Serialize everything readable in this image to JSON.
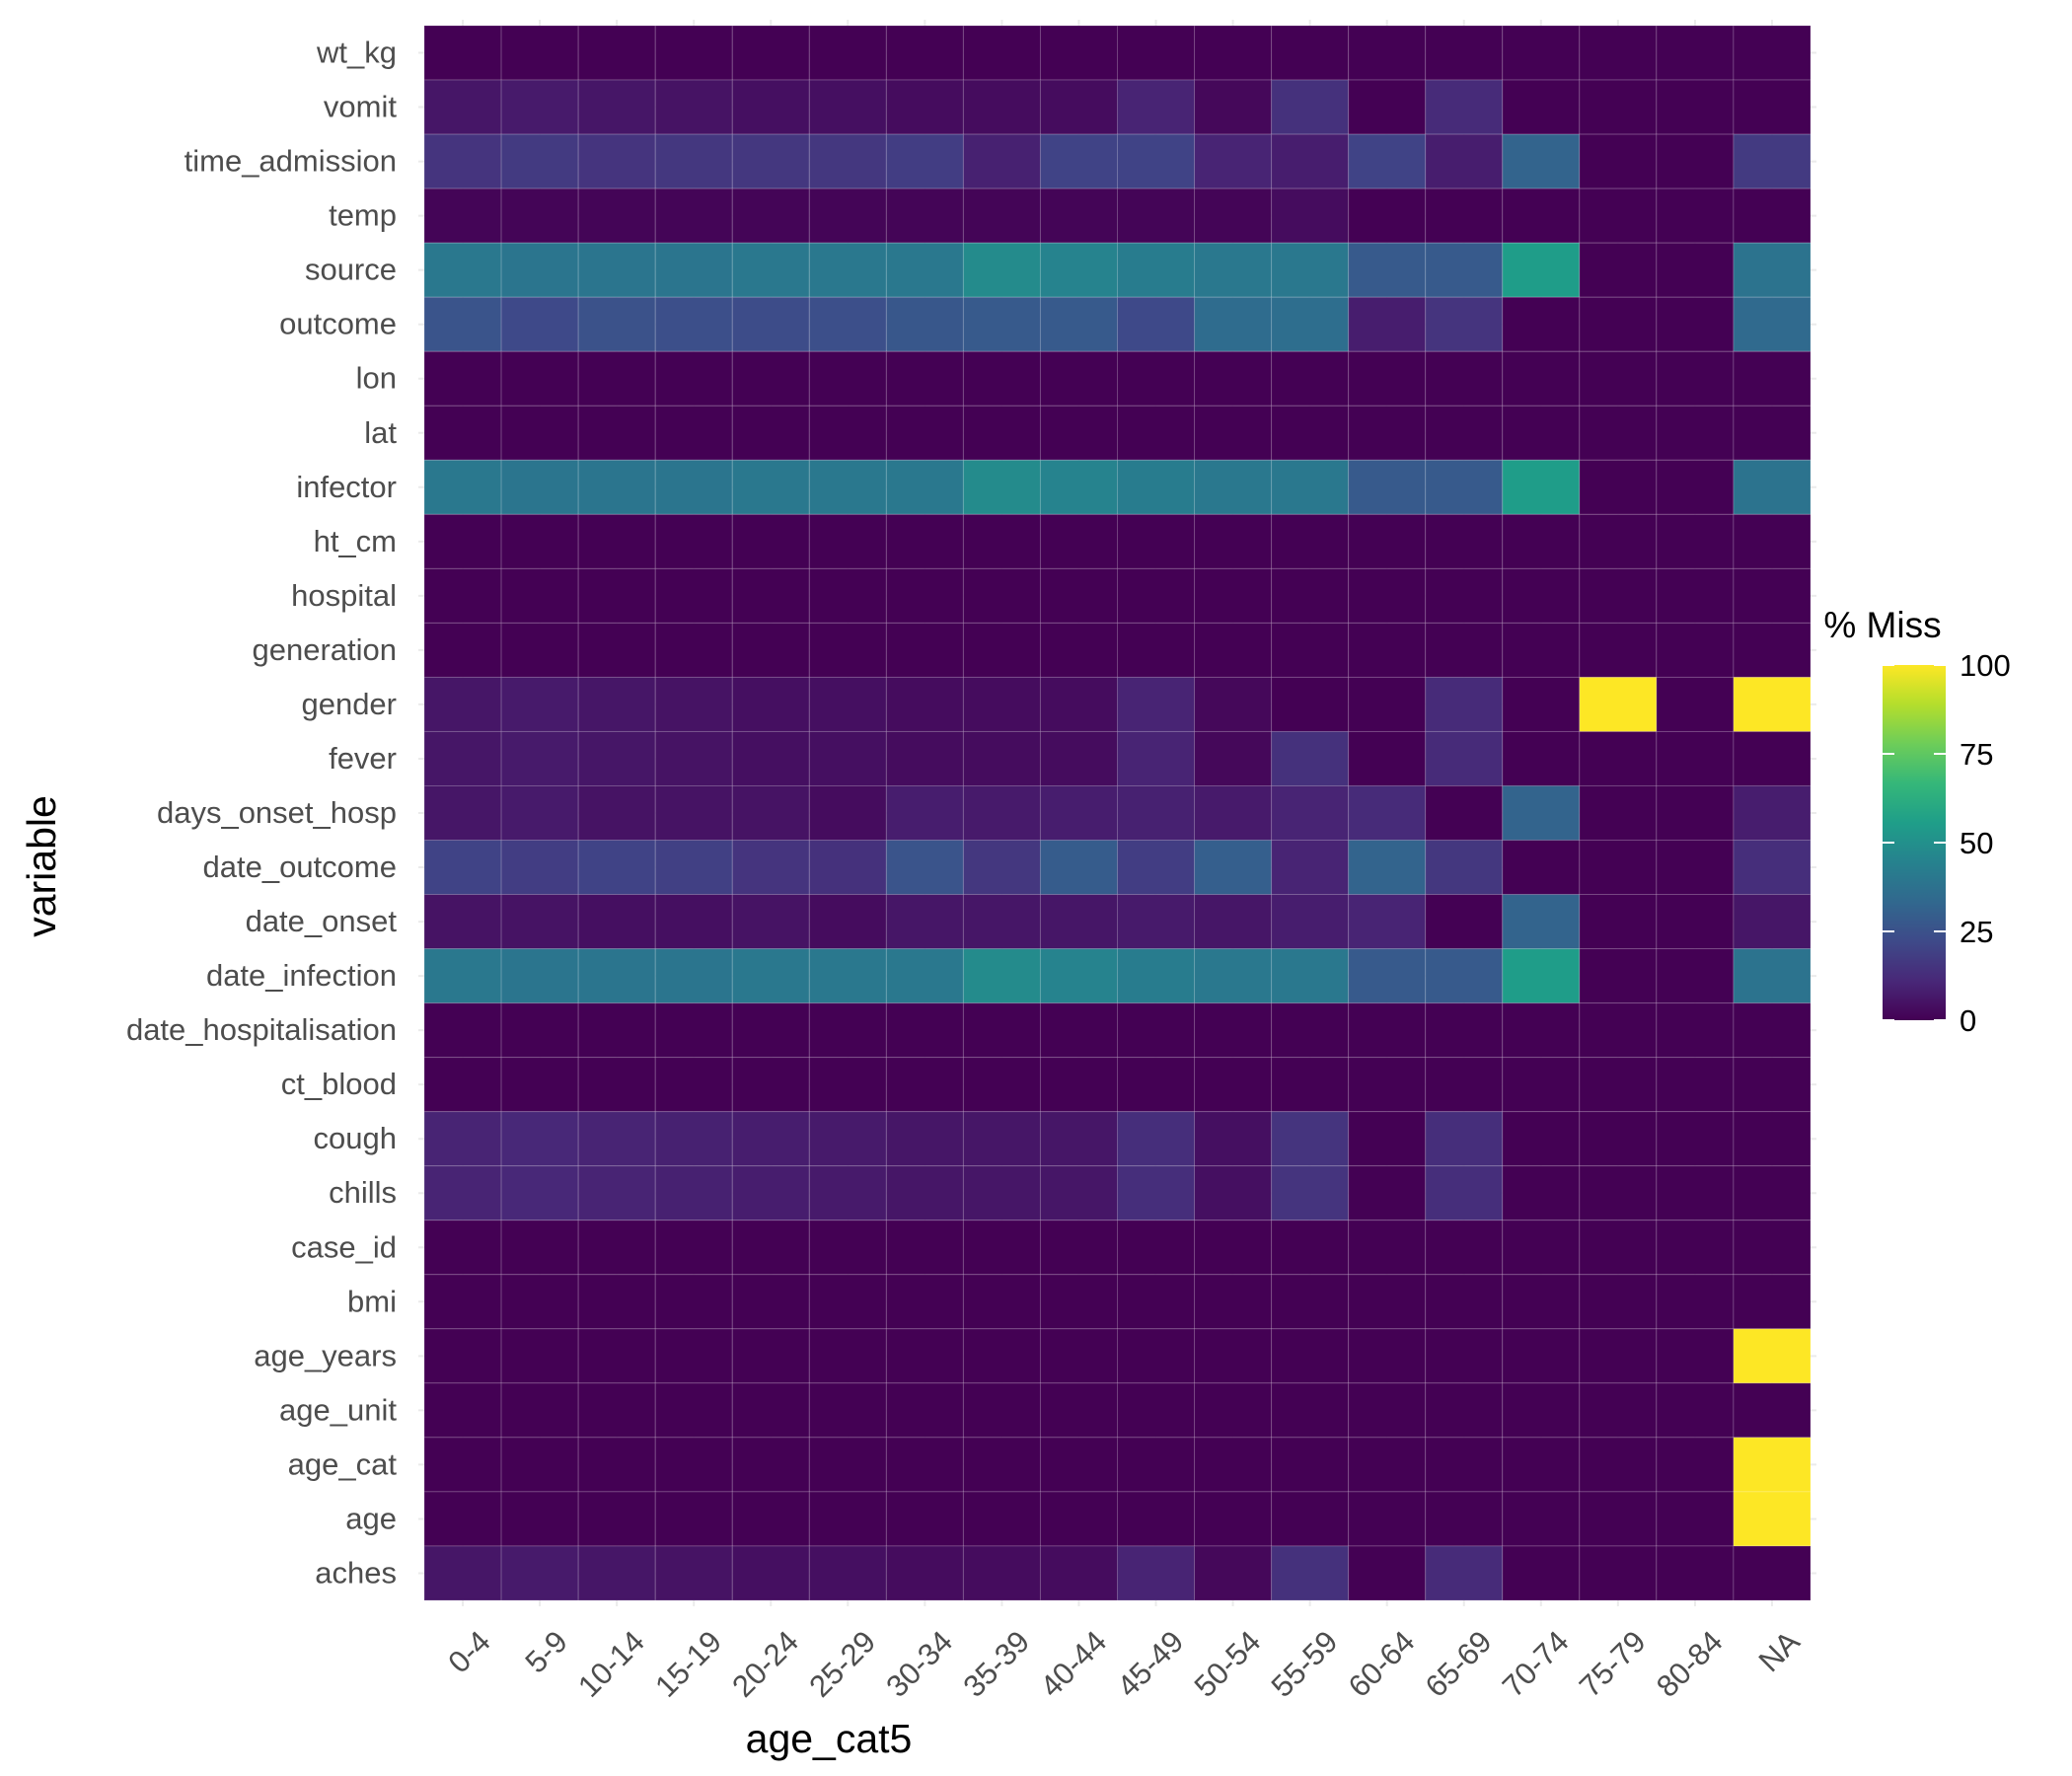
{
  "chart_data": {
    "type": "heatmap",
    "xlabel": "age_cat5",
    "ylabel": "variable",
    "x_categories": [
      "0-4",
      "5-9",
      "10-14",
      "15-19",
      "20-24",
      "25-29",
      "30-34",
      "35-39",
      "40-44",
      "45-49",
      "50-54",
      "55-59",
      "60-64",
      "65-69",
      "70-74",
      "75-79",
      "80-84",
      "NA"
    ],
    "y_categories": [
      "wt_kg",
      "vomit",
      "time_admission",
      "temp",
      "source",
      "outcome",
      "lon",
      "lat",
      "infector",
      "ht_cm",
      "hospital",
      "generation",
      "gender",
      "fever",
      "days_onset_hosp",
      "date_outcome",
      "date_onset",
      "date_infection",
      "date_hospitalisation",
      "ct_blood",
      "cough",
      "chills",
      "case_id",
      "bmi",
      "age_years",
      "age_unit",
      "age_cat",
      "age",
      "aches"
    ],
    "values": [
      [
        0,
        0,
        0,
        0,
        0,
        0,
        0,
        0,
        0,
        0,
        0,
        0,
        0,
        0,
        0,
        0,
        0,
        0
      ],
      [
        6,
        7,
        6,
        5,
        4,
        4,
        3,
        3,
        3,
        10,
        2,
        14,
        0,
        12,
        0,
        0,
        0,
        0
      ],
      [
        15,
        17,
        15,
        16,
        16,
        16,
        18,
        9,
        20,
        20,
        10,
        8,
        20,
        8,
        32,
        0,
        0,
        17
      ],
      [
        1,
        1,
        1,
        1,
        1,
        1,
        1,
        1,
        1,
        1,
        1,
        3,
        0,
        0,
        0,
        0,
        0,
        0
      ],
      [
        40,
        39,
        39,
        39,
        40,
        40,
        40,
        48,
        45,
        42,
        40,
        40,
        28,
        28,
        55,
        0,
        0,
        38
      ],
      [
        26,
        22,
        25,
        24,
        23,
        24,
        27,
        28,
        28,
        22,
        35,
        36,
        8,
        15,
        0,
        0,
        0,
        34
      ],
      [
        0,
        0,
        0,
        0,
        0,
        0,
        0,
        0,
        0,
        0,
        0,
        0,
        0,
        0,
        0,
        0,
        0,
        0
      ],
      [
        0,
        0,
        0,
        0,
        0,
        0,
        0,
        0,
        0,
        0,
        0,
        0,
        0,
        0,
        0,
        0,
        0,
        0
      ],
      [
        40,
        39,
        39,
        39,
        40,
        40,
        40,
        48,
        45,
        42,
        40,
        40,
        28,
        28,
        55,
        0,
        0,
        38
      ],
      [
        0,
        0,
        0,
        0,
        0,
        0,
        0,
        0,
        0,
        0,
        0,
        0,
        0,
        0,
        0,
        0,
        0,
        0
      ],
      [
        0,
        0,
        0,
        0,
        0,
        0,
        0,
        0,
        0,
        0,
        0,
        0,
        0,
        0,
        0,
        0,
        0,
        0
      ],
      [
        0,
        0,
        0,
        0,
        0,
        0,
        0,
        0,
        0,
        0,
        0,
        0,
        0,
        0,
        0,
        0,
        0,
        0
      ],
      [
        6,
        7,
        6,
        5,
        4,
        4,
        3,
        3,
        3,
        10,
        2,
        0,
        0,
        12,
        0,
        100,
        0,
        100
      ],
      [
        6,
        7,
        6,
        5,
        4,
        4,
        3,
        3,
        3,
        10,
        2,
        14,
        0,
        12,
        0,
        0,
        0,
        0
      ],
      [
        6,
        7,
        5,
        5,
        5,
        3,
        8,
        7,
        8,
        9,
        7,
        10,
        12,
        0,
        32,
        0,
        0,
        8
      ],
      [
        20,
        18,
        20,
        19,
        15,
        14,
        26,
        16,
        29,
        18,
        30,
        10,
        32,
        16,
        0,
        0,
        0,
        13
      ],
      [
        5,
        5,
        4,
        4,
        5,
        3,
        6,
        6,
        6,
        7,
        6,
        8,
        10,
        0,
        32,
        0,
        0,
        6
      ],
      [
        40,
        39,
        39,
        39,
        40,
        40,
        40,
        48,
        45,
        42,
        40,
        40,
        28,
        28,
        55,
        0,
        0,
        38
      ],
      [
        0,
        0,
        0,
        0,
        0,
        0,
        0,
        0,
        0,
        0,
        0,
        0,
        0,
        0,
        0,
        0,
        0,
        0
      ],
      [
        0,
        0,
        0,
        0,
        0,
        0,
        0,
        0,
        0,
        0,
        0,
        0,
        0,
        0,
        0,
        0,
        0,
        0
      ],
      [
        10,
        11,
        10,
        9,
        8,
        7,
        6,
        6,
        6,
        13,
        4,
        15,
        0,
        13,
        0,
        0,
        0,
        0
      ],
      [
        10,
        11,
        10,
        9,
        8,
        7,
        6,
        6,
        6,
        13,
        4,
        15,
        0,
        13,
        0,
        0,
        0,
        0
      ],
      [
        0,
        0,
        0,
        0,
        0,
        0,
        0,
        0,
        0,
        0,
        0,
        0,
        0,
        0,
        0,
        0,
        0,
        0
      ],
      [
        0,
        0,
        0,
        0,
        0,
        0,
        0,
        0,
        0,
        0,
        0,
        0,
        0,
        0,
        0,
        0,
        0,
        0
      ],
      [
        0,
        0,
        0,
        0,
        0,
        0,
        0,
        0,
        0,
        0,
        0,
        0,
        0,
        0,
        0,
        0,
        0,
        100
      ],
      [
        0,
        0,
        0,
        0,
        0,
        0,
        0,
        0,
        0,
        0,
        0,
        0,
        0,
        0,
        0,
        0,
        0,
        0
      ],
      [
        0,
        0,
        0,
        0,
        0,
        0,
        0,
        0,
        0,
        0,
        0,
        0,
        0,
        0,
        0,
        0,
        0,
        100
      ],
      [
        0,
        0,
        0,
        0,
        0,
        0,
        0,
        0,
        0,
        0,
        0,
        0,
        0,
        0,
        0,
        0,
        0,
        100
      ],
      [
        6,
        7,
        6,
        5,
        4,
        4,
        3,
        3,
        3,
        10,
        2,
        14,
        0,
        12,
        0,
        0,
        0,
        0
      ]
    ],
    "legend": {
      "title": "% Miss",
      "breaks": [
        0,
        25,
        50,
        75,
        100
      ],
      "break_labels": [
        "0",
        "25",
        "50",
        "75",
        "100"
      ],
      "range": [
        0,
        100
      ],
      "palette": "viridis",
      "position": "right"
    },
    "colors": {
      "viridis": [
        "#440154",
        "#482878",
        "#3E4A89",
        "#31688E",
        "#26828E",
        "#1F9E89",
        "#35B779",
        "#6DCD59",
        "#B4DE2C",
        "#FDE725"
      ],
      "label_text": "#4d4d4d",
      "grid": "#ebebeb"
    }
  }
}
